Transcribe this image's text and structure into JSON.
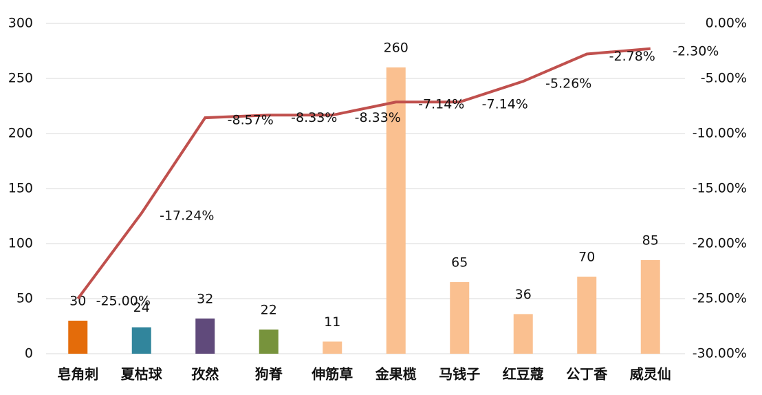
{
  "chart_data": {
    "type": "combo",
    "categories": [
      "皂角刺",
      "夏枯球",
      "孜然",
      "狗脊",
      "伸筋草",
      "金果榄",
      "马钱子",
      "红豆蔻",
      "公丁香",
      "威灵仙"
    ],
    "series": [
      {
        "type": "bar",
        "values": [
          30,
          24,
          32,
          22,
          11,
          260,
          65,
          36,
          70,
          85
        ],
        "colors": [
          "#e46c0a",
          "#31859c",
          "#604a7b",
          "#77933c",
          "#fac090",
          "#fac090",
          "#fac090",
          "#fac090",
          "#fac090",
          "#fac090"
        ]
      },
      {
        "type": "line",
        "axis": "y2",
        "color": "#c0504d",
        "values": [
          -25.0,
          -17.24,
          -8.57,
          -8.33,
          -8.33,
          -7.14,
          -7.14,
          -5.26,
          -2.78,
          -2.3
        ],
        "value_labels": [
          "-25.00%",
          "-17.24%",
          "-8.57%",
          "-8.33%",
          "-8.33%",
          "-7.14%",
          "-7.14%",
          "-5.26%",
          "-2.78%",
          "-2.30%"
        ]
      }
    ],
    "ylim": [
      0,
      300
    ],
    "yticks": [
      0,
      50,
      100,
      150,
      200,
      250,
      300
    ],
    "y2lim": [
      -30,
      0
    ],
    "y2ticks": [
      {
        "value": -30,
        "label": "-30.00%"
      },
      {
        "value": -25,
        "label": "-25.00%"
      },
      {
        "value": -20,
        "label": "-20.00%"
      },
      {
        "value": -15,
        "label": "-15.00%"
      },
      {
        "value": -10,
        "label": "-10.00%"
      },
      {
        "value": -5,
        "label": "-5.00%"
      },
      {
        "value": 0,
        "label": "0.00%"
      }
    ],
    "grid": true
  }
}
